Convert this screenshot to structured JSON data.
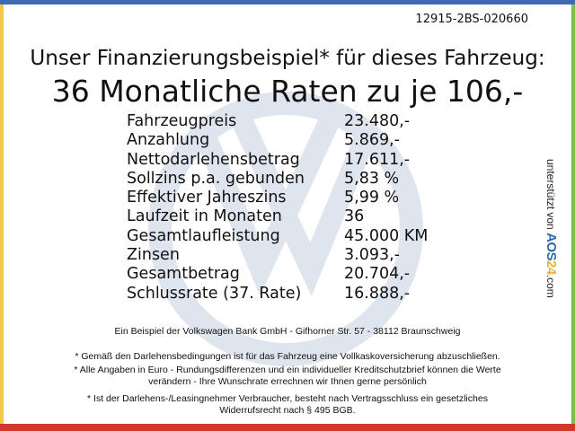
{
  "reference_code": "12915-2BS-020660",
  "headline": "Unser Finanzierungsbeispiel* für dieses Fahrzeug:",
  "subheadline": "36 Monatliche Raten zu je 106,-",
  "rows": [
    {
      "label": "Fahrzeugpreis",
      "value": "23.480,-"
    },
    {
      "label": "Anzahlung",
      "value": "5.869,-"
    },
    {
      "label": "Nettodarlehensbetrag",
      "value": "17.611,-"
    },
    {
      "label": "Sollzins p.a. gebunden",
      "value": "5,83 %"
    },
    {
      "label": "Effektiver Jahreszins",
      "value": "5,99 %"
    },
    {
      "label": "Laufzeit in Monaten",
      "value": "36"
    },
    {
      "label": "Gesamtlaufleistung",
      "value": "45.000 KM"
    },
    {
      "label": "Zinsen",
      "value": "3.093,-"
    },
    {
      "label": "Gesamtbetrag",
      "value": "20.704,-"
    },
    {
      "label": "Schlussrate (37. Rate)",
      "value": "16.888,-"
    }
  ],
  "side": {
    "prefix": "unterstützt von",
    "logo_a": "AOS",
    "logo_b": "24",
    "suffix": ".com"
  },
  "footer": {
    "bank": "Ein Beispiel der Volkswagen Bank GmbH - Gifhorner Str. 57 - 38112 Braunschweig",
    "note1": "* Gemäß den Darlehensbedingungen ist für das Fahrzeug eine Vollkaskoversicherung abzuschließen.",
    "note2a": "* Alle Angaben in Euro - Rundungsdifferenzen und ein individueller Kreditschutzbrief können die Werte",
    "note2b": "verändern - Ihre Wunschrate errechnen wir Ihnen gerne persönlich",
    "note3a": "* Ist der Darlehens-/Leasingnehmer Verbraucher, besteht nach Vertragsschluss ein gesetzliches",
    "note3b": "Widerrufsrecht nach § 495 BGB."
  },
  "colors": {
    "top": "#3f69b5",
    "left": "#f2c84b",
    "right": "#7cc242",
    "bottom": "#d1372b",
    "watermark": "#dfe5ee"
  }
}
